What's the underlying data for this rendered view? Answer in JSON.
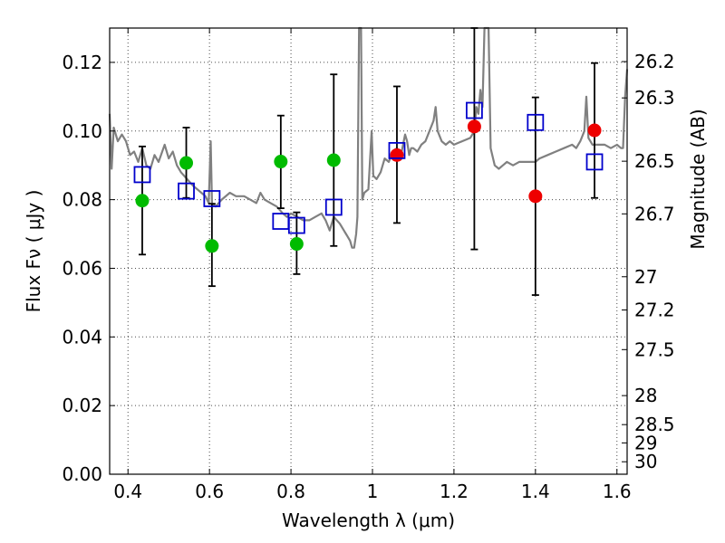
{
  "chart_data": {
    "type": "scatter",
    "xlabel": "Wavelength  λ (μm)",
    "ylabel": "Flux  Fν  ( μJy )",
    "y2label": "Magnitude (AB)",
    "xlim": [
      0.355,
      1.625
    ],
    "ylim": [
      0.0,
      0.13
    ],
    "x_ticks": [
      "0.4",
      "0.6",
      "0.8",
      "1",
      "1.2",
      "1.4",
      "1.6"
    ],
    "x_tick_values": [
      0.4,
      0.6,
      0.8,
      1.0,
      1.2,
      1.4,
      1.6
    ],
    "y_ticks": [
      "0.00",
      "0.02",
      "0.04",
      "0.06",
      "0.08",
      "0.10",
      "0.12"
    ],
    "y_tick_values": [
      0.0,
      0.02,
      0.04,
      0.06,
      0.08,
      0.1,
      0.12
    ],
    "y2_ticks": [
      "26.2",
      "26.3",
      "26.5",
      "26.7",
      "27",
      "27.2",
      "27.5",
      "28",
      "28.5",
      "29",
      "30"
    ],
    "y2_tick_values": [
      26.2,
      26.3,
      26.5,
      26.7,
      27.0,
      27.2,
      27.5,
      28.0,
      28.5,
      29.0,
      30.0
    ],
    "grid": true,
    "colors": {
      "observed_green": "#00bb00",
      "observed_red": "#ee0000",
      "model_box": "#0000cc",
      "sed_line": "#808080",
      "error_bar": "#000000"
    },
    "series": [
      {
        "marker": "circle-green",
        "points": [
          {
            "x": 0.435,
            "y": 0.0797,
            "err_lo": 0.064,
            "err_hi": 0.0955
          },
          {
            "x": 0.543,
            "y": 0.0907,
            "err_lo": 0.0805,
            "err_hi": 0.101
          },
          {
            "x": 0.606,
            "y": 0.0665,
            "err_lo": 0.0548,
            "err_hi": 0.0788
          },
          {
            "x": 0.775,
            "y": 0.0911,
            "err_lo": 0.0775,
            "err_hi": 0.1045
          },
          {
            "x": 0.814,
            "y": 0.0671,
            "err_lo": 0.0583,
            "err_hi": 0.0763
          },
          {
            "x": 0.905,
            "y": 0.0915,
            "err_lo": 0.0665,
            "err_hi": 0.1165
          }
        ]
      },
      {
        "marker": "circle-red",
        "points": [
          {
            "x": 1.06,
            "y": 0.093,
            "err_lo": 0.0732,
            "err_hi": 0.113
          },
          {
            "x": 1.25,
            "y": 0.1013,
            "err_lo": 0.0655,
            "err_hi": 0.131
          },
          {
            "x": 1.4,
            "y": 0.081,
            "err_lo": 0.0522,
            "err_hi": 0.1098
          },
          {
            "x": 1.545,
            "y": 0.1002,
            "err_lo": 0.0805,
            "err_hi": 0.1198
          }
        ]
      },
      {
        "marker": "square-open-blue",
        "points": [
          {
            "x": 0.435,
            "y": 0.0873
          },
          {
            "x": 0.543,
            "y": 0.0825
          },
          {
            "x": 0.606,
            "y": 0.0803
          },
          {
            "x": 0.775,
            "y": 0.0737
          },
          {
            "x": 0.814,
            "y": 0.0725
          },
          {
            "x": 0.905,
            "y": 0.0778
          },
          {
            "x": 1.06,
            "y": 0.0943
          },
          {
            "x": 1.25,
            "y": 0.106
          },
          {
            "x": 1.4,
            "y": 0.1025
          },
          {
            "x": 1.545,
            "y": 0.091
          }
        ]
      },
      {
        "marker": "line-gray",
        "points": [
          [
            0.355,
            0.105
          ],
          [
            0.36,
            0.089
          ],
          [
            0.365,
            0.101
          ],
          [
            0.375,
            0.097
          ],
          [
            0.385,
            0.099
          ],
          [
            0.395,
            0.097
          ],
          [
            0.405,
            0.093
          ],
          [
            0.415,
            0.094
          ],
          [
            0.425,
            0.091
          ],
          [
            0.435,
            0.095
          ],
          [
            0.445,
            0.09
          ],
          [
            0.455,
            0.089
          ],
          [
            0.465,
            0.093
          ],
          [
            0.475,
            0.091
          ],
          [
            0.49,
            0.096
          ],
          [
            0.5,
            0.092
          ],
          [
            0.51,
            0.094
          ],
          [
            0.52,
            0.09
          ],
          [
            0.53,
            0.088
          ],
          [
            0.545,
            0.086
          ],
          [
            0.56,
            0.084
          ],
          [
            0.57,
            0.083
          ],
          [
            0.58,
            0.082
          ],
          [
            0.59,
            0.081
          ],
          [
            0.598,
            0.079
          ],
          [
            0.603,
            0.097
          ],
          [
            0.606,
            0.079
          ],
          [
            0.615,
            0.078
          ],
          [
            0.63,
            0.08
          ],
          [
            0.65,
            0.082
          ],
          [
            0.665,
            0.081
          ],
          [
            0.685,
            0.081
          ],
          [
            0.7,
            0.08
          ],
          [
            0.715,
            0.079
          ],
          [
            0.725,
            0.082
          ],
          [
            0.735,
            0.08
          ],
          [
            0.75,
            0.079
          ],
          [
            0.765,
            0.078
          ],
          [
            0.78,
            0.076
          ],
          [
            0.79,
            0.075
          ],
          [
            0.8,
            0.076
          ],
          [
            0.815,
            0.075
          ],
          [
            0.83,
            0.074
          ],
          [
            0.845,
            0.074
          ],
          [
            0.86,
            0.075
          ],
          [
            0.875,
            0.076
          ],
          [
            0.885,
            0.074
          ],
          [
            0.895,
            0.071
          ],
          [
            0.905,
            0.075
          ],
          [
            0.92,
            0.073
          ],
          [
            0.935,
            0.07
          ],
          [
            0.945,
            0.068
          ],
          [
            0.95,
            0.066
          ],
          [
            0.955,
            0.066
          ],
          [
            0.96,
            0.07
          ],
          [
            0.963,
            0.075
          ],
          [
            0.967,
            0.13
          ],
          [
            0.972,
            0.13
          ],
          [
            0.975,
            0.08
          ],
          [
            0.98,
            0.082
          ],
          [
            0.99,
            0.083
          ],
          [
            0.998,
            0.1
          ],
          [
            1.002,
            0.087
          ],
          [
            1.01,
            0.086
          ],
          [
            1.02,
            0.088
          ],
          [
            1.03,
            0.092
          ],
          [
            1.04,
            0.091
          ],
          [
            1.05,
            0.094
          ],
          [
            1.06,
            0.095
          ],
          [
            1.065,
            0.092
          ],
          [
            1.07,
            0.093
          ],
          [
            1.08,
            0.099
          ],
          [
            1.085,
            0.097
          ],
          [
            1.09,
            0.093
          ],
          [
            1.095,
            0.095
          ],
          [
            1.1,
            0.095
          ],
          [
            1.11,
            0.094
          ],
          [
            1.12,
            0.096
          ],
          [
            1.13,
            0.097
          ],
          [
            1.14,
            0.1
          ],
          [
            1.15,
            0.103
          ],
          [
            1.155,
            0.107
          ],
          [
            1.16,
            0.1
          ],
          [
            1.17,
            0.097
          ],
          [
            1.18,
            0.096
          ],
          [
            1.19,
            0.097
          ],
          [
            1.2,
            0.096
          ],
          [
            1.22,
            0.097
          ],
          [
            1.24,
            0.098
          ],
          [
            1.25,
            0.1
          ],
          [
            1.255,
            0.107
          ],
          [
            1.26,
            0.105
          ],
          [
            1.265,
            0.112
          ],
          [
            1.27,
            0.107
          ],
          [
            1.275,
            0.13
          ],
          [
            1.285,
            0.13
          ],
          [
            1.29,
            0.095
          ],
          [
            1.3,
            0.09
          ],
          [
            1.31,
            0.089
          ],
          [
            1.32,
            0.09
          ],
          [
            1.33,
            0.091
          ],
          [
            1.345,
            0.09
          ],
          [
            1.36,
            0.091
          ],
          [
            1.37,
            0.091
          ],
          [
            1.38,
            0.091
          ],
          [
            1.39,
            0.091
          ],
          [
            1.4,
            0.091
          ],
          [
            1.41,
            0.092
          ],
          [
            1.43,
            0.093
          ],
          [
            1.45,
            0.094
          ],
          [
            1.47,
            0.095
          ],
          [
            1.49,
            0.096
          ],
          [
            1.5,
            0.095
          ],
          [
            1.51,
            0.097
          ],
          [
            1.52,
            0.1
          ],
          [
            1.525,
            0.11
          ],
          [
            1.53,
            0.098
          ],
          [
            1.54,
            0.096
          ],
          [
            1.555,
            0.096
          ],
          [
            1.57,
            0.096
          ],
          [
            1.585,
            0.095
          ],
          [
            1.6,
            0.096
          ],
          [
            1.61,
            0.095
          ],
          [
            1.615,
            0.095
          ],
          [
            1.62,
            0.11
          ],
          [
            1.625,
            0.118
          ]
        ]
      }
    ]
  }
}
